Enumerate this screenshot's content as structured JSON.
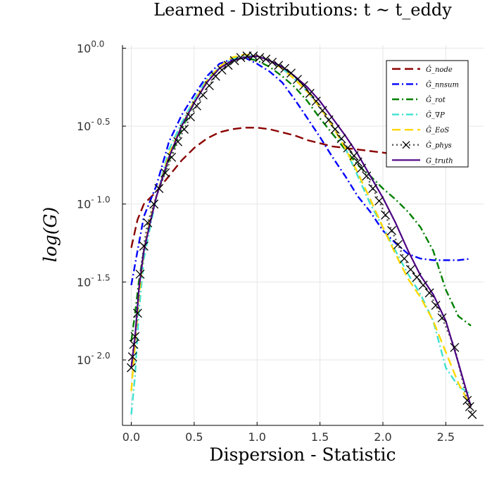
{
  "chart_data": {
    "type": "line",
    "title": "Learned - Distributions: t ~ t_eddy",
    "xlabel": "Dispersion - Statistic",
    "ylabel": "log(G)",
    "xlim": [
      -0.07,
      2.8
    ],
    "ylim": [
      -2.42,
      0.02
    ],
    "y_scale": "log10",
    "grid": true,
    "legend_position": "top-right",
    "x_ticks": [
      {
        "value": 0.0,
        "label": "0.0"
      },
      {
        "value": 0.5,
        "label": "0.5"
      },
      {
        "value": 1.0,
        "label": "1.0"
      },
      {
        "value": 1.5,
        "label": "1.5"
      },
      {
        "value": 2.0,
        "label": "2.0"
      },
      {
        "value": 2.5,
        "label": "2.5"
      }
    ],
    "y_ticks": [
      {
        "value": 0.0,
        "base": "10",
        "exponent": "0.0"
      },
      {
        "value": -0.5,
        "base": "10",
        "exponent": "- 0.5"
      },
      {
        "value": -1.0,
        "base": "10",
        "exponent": "- 1.0"
      },
      {
        "value": -1.5,
        "base": "10",
        "exponent": "- 1.5"
      },
      {
        "value": -2.0,
        "base": "10",
        "exponent": "- 2.0"
      }
    ],
    "series": [
      {
        "name": "Ĝ_node",
        "color": "#8b0000",
        "dash": "dashed",
        "x": [
          0.0,
          0.05,
          0.1,
          0.2,
          0.3,
          0.4,
          0.5,
          0.6,
          0.7,
          0.8,
          0.9,
          1.0,
          1.1,
          1.2,
          1.3,
          1.4,
          1.5,
          1.6,
          1.7,
          1.8,
          1.9,
          2.0,
          2.1,
          2.2
        ],
        "y": [
          -1.28,
          -1.1,
          -1.0,
          -0.92,
          -0.82,
          -0.72,
          -0.64,
          -0.58,
          -0.54,
          -0.52,
          -0.51,
          -0.51,
          -0.52,
          -0.54,
          -0.56,
          -0.59,
          -0.61,
          -0.63,
          -0.64,
          -0.65,
          -0.66,
          -0.67,
          -0.68,
          -0.69
        ]
      },
      {
        "name": "Ĝ_nnsum",
        "color": "#0000ff",
        "dash": "dashdot",
        "x": [
          0.0,
          0.05,
          0.1,
          0.2,
          0.3,
          0.4,
          0.5,
          0.6,
          0.7,
          0.8,
          0.9,
          1.0,
          1.1,
          1.2,
          1.3,
          1.4,
          1.5,
          1.6,
          1.7,
          1.8,
          1.9,
          2.0,
          2.1,
          2.2,
          2.3,
          2.4,
          2.5,
          2.6,
          2.7
        ],
        "y": [
          -1.52,
          -1.3,
          -1.08,
          -0.88,
          -0.6,
          -0.43,
          -0.3,
          -0.18,
          -0.1,
          -0.07,
          -0.06,
          -0.1,
          -0.15,
          -0.22,
          -0.33,
          -0.45,
          -0.57,
          -0.7,
          -0.82,
          -0.95,
          -1.05,
          -1.17,
          -1.25,
          -1.32,
          -1.35,
          -1.36,
          -1.36,
          -1.36,
          -1.35
        ]
      },
      {
        "name": "Ĝ_rot",
        "color": "#008000",
        "dash": "dashdot",
        "x": [
          0.0,
          0.03,
          0.06,
          0.1,
          0.15,
          0.2,
          0.3,
          0.4,
          0.5,
          0.6,
          0.7,
          0.8,
          0.9,
          1.0,
          1.1,
          1.2,
          1.3,
          1.4,
          1.5,
          1.6,
          1.7,
          1.8,
          1.9,
          2.0,
          2.1,
          2.2,
          2.3,
          2.4,
          2.5,
          2.6,
          2.7
        ],
        "y": [
          -1.88,
          -1.7,
          -1.5,
          -1.3,
          -1.1,
          -0.95,
          -0.72,
          -0.52,
          -0.35,
          -0.22,
          -0.13,
          -0.08,
          -0.06,
          -0.08,
          -0.12,
          -0.18,
          -0.25,
          -0.34,
          -0.45,
          -0.55,
          -0.65,
          -0.75,
          -0.82,
          -0.9,
          -0.97,
          -1.05,
          -1.15,
          -1.3,
          -1.55,
          -1.72,
          -1.78
        ]
      },
      {
        "name": "Ĝ_∇P",
        "color": "#40e0d0",
        "dash": "dashdot",
        "x": [
          0.0,
          0.03,
          0.06,
          0.1,
          0.15,
          0.2,
          0.3,
          0.4,
          0.5,
          0.6,
          0.7,
          0.8,
          0.9,
          1.0,
          1.1,
          1.2,
          1.3,
          1.4,
          1.5,
          1.6,
          1.7,
          1.8,
          1.9,
          2.0,
          2.1,
          2.2,
          2.3,
          2.4,
          2.5,
          2.6,
          2.7
        ],
        "y": [
          -2.35,
          -2.1,
          -1.7,
          -1.35,
          -1.15,
          -0.95,
          -0.65,
          -0.48,
          -0.33,
          -0.2,
          -0.12,
          -0.07,
          -0.05,
          -0.05,
          -0.08,
          -0.13,
          -0.2,
          -0.28,
          -0.38,
          -0.5,
          -0.64,
          -0.82,
          -1.0,
          -1.15,
          -1.3,
          -1.45,
          -1.58,
          -1.75,
          -2.05,
          -2.17,
          -2.22
        ]
      },
      {
        "name": "Ĝ_EoS",
        "color": "#ffd700",
        "dash": "dashed",
        "x": [
          0.0,
          0.03,
          0.06,
          0.1,
          0.15,
          0.2,
          0.3,
          0.4,
          0.5,
          0.6,
          0.7,
          0.8,
          0.9,
          1.0,
          1.1,
          1.2,
          1.3,
          1.4,
          1.5,
          1.6,
          1.7,
          1.8,
          1.9,
          2.0,
          2.1,
          2.2,
          2.3,
          2.4,
          2.5,
          2.6,
          2.7
        ],
        "y": [
          -2.2,
          -1.9,
          -1.6,
          -1.3,
          -1.1,
          -0.95,
          -0.68,
          -0.5,
          -0.34,
          -0.21,
          -0.12,
          -0.06,
          -0.04,
          -0.05,
          -0.08,
          -0.13,
          -0.2,
          -0.28,
          -0.38,
          -0.5,
          -0.64,
          -0.8,
          -0.97,
          -1.15,
          -1.32,
          -1.48,
          -1.6,
          -1.75,
          -1.95,
          -2.15,
          -2.3
        ]
      },
      {
        "name": "Ĝ_phys",
        "color": "#555555",
        "dash": "dotted",
        "x": [
          0.0,
          0.01,
          0.02,
          0.03,
          0.05,
          0.07,
          0.1,
          0.13,
          0.18,
          0.22,
          0.27,
          0.32,
          0.37,
          0.42,
          0.47,
          0.52,
          0.57,
          0.62,
          0.67,
          0.72,
          0.77,
          0.82,
          0.87,
          0.92,
          0.97,
          1.02,
          1.07,
          1.12,
          1.17,
          1.22,
          1.27,
          1.32,
          1.37,
          1.42,
          1.47,
          1.52,
          1.57,
          1.62,
          1.67,
          1.72,
          1.77,
          1.8,
          1.83,
          1.87,
          1.92,
          1.97,
          2.02,
          2.07,
          2.12,
          2.17,
          2.22,
          2.27,
          2.32,
          2.37,
          2.42,
          2.47,
          2.57,
          2.67,
          2.69,
          2.71
        ],
        "y": [
          -2.05,
          -1.98,
          -1.9,
          -1.85,
          -1.7,
          -1.45,
          -1.27,
          -1.12,
          -1.0,
          -0.9,
          -0.8,
          -0.7,
          -0.6,
          -0.52,
          -0.44,
          -0.37,
          -0.3,
          -0.24,
          -0.18,
          -0.14,
          -0.11,
          -0.08,
          -0.06,
          -0.05,
          -0.05,
          -0.06,
          -0.07,
          -0.09,
          -0.11,
          -0.13,
          -0.16,
          -0.2,
          -0.24,
          -0.29,
          -0.34,
          -0.4,
          -0.46,
          -0.52,
          -0.58,
          -0.64,
          -0.69,
          -0.73,
          -0.77,
          -0.82,
          -0.9,
          -0.98,
          -1.07,
          -1.17,
          -1.26,
          -1.35,
          -1.42,
          -1.47,
          -1.52,
          -1.57,
          -1.65,
          -1.73,
          -1.92,
          -2.26,
          -2.3,
          -2.35
        ]
      },
      {
        "name": "G_truth",
        "color": "#4b0082",
        "dash": "solid",
        "x": [
          0.0,
          0.03,
          0.06,
          0.1,
          0.15,
          0.2,
          0.3,
          0.4,
          0.5,
          0.6,
          0.7,
          0.8,
          0.9,
          1.0,
          1.1,
          1.2,
          1.3,
          1.4,
          1.5,
          1.6,
          1.7,
          1.8,
          1.9,
          2.0,
          2.1,
          2.2,
          2.3,
          2.4,
          2.5,
          2.6,
          2.7
        ],
        "y": [
          -2.05,
          -1.85,
          -1.55,
          -1.3,
          -1.12,
          -0.95,
          -0.7,
          -0.5,
          -0.35,
          -0.22,
          -0.13,
          -0.08,
          -0.06,
          -0.05,
          -0.08,
          -0.12,
          -0.18,
          -0.25,
          -0.34,
          -0.45,
          -0.56,
          -0.68,
          -0.82,
          -0.96,
          -1.12,
          -1.3,
          -1.46,
          -1.58,
          -1.75,
          -2.02,
          -2.3
        ]
      }
    ]
  }
}
